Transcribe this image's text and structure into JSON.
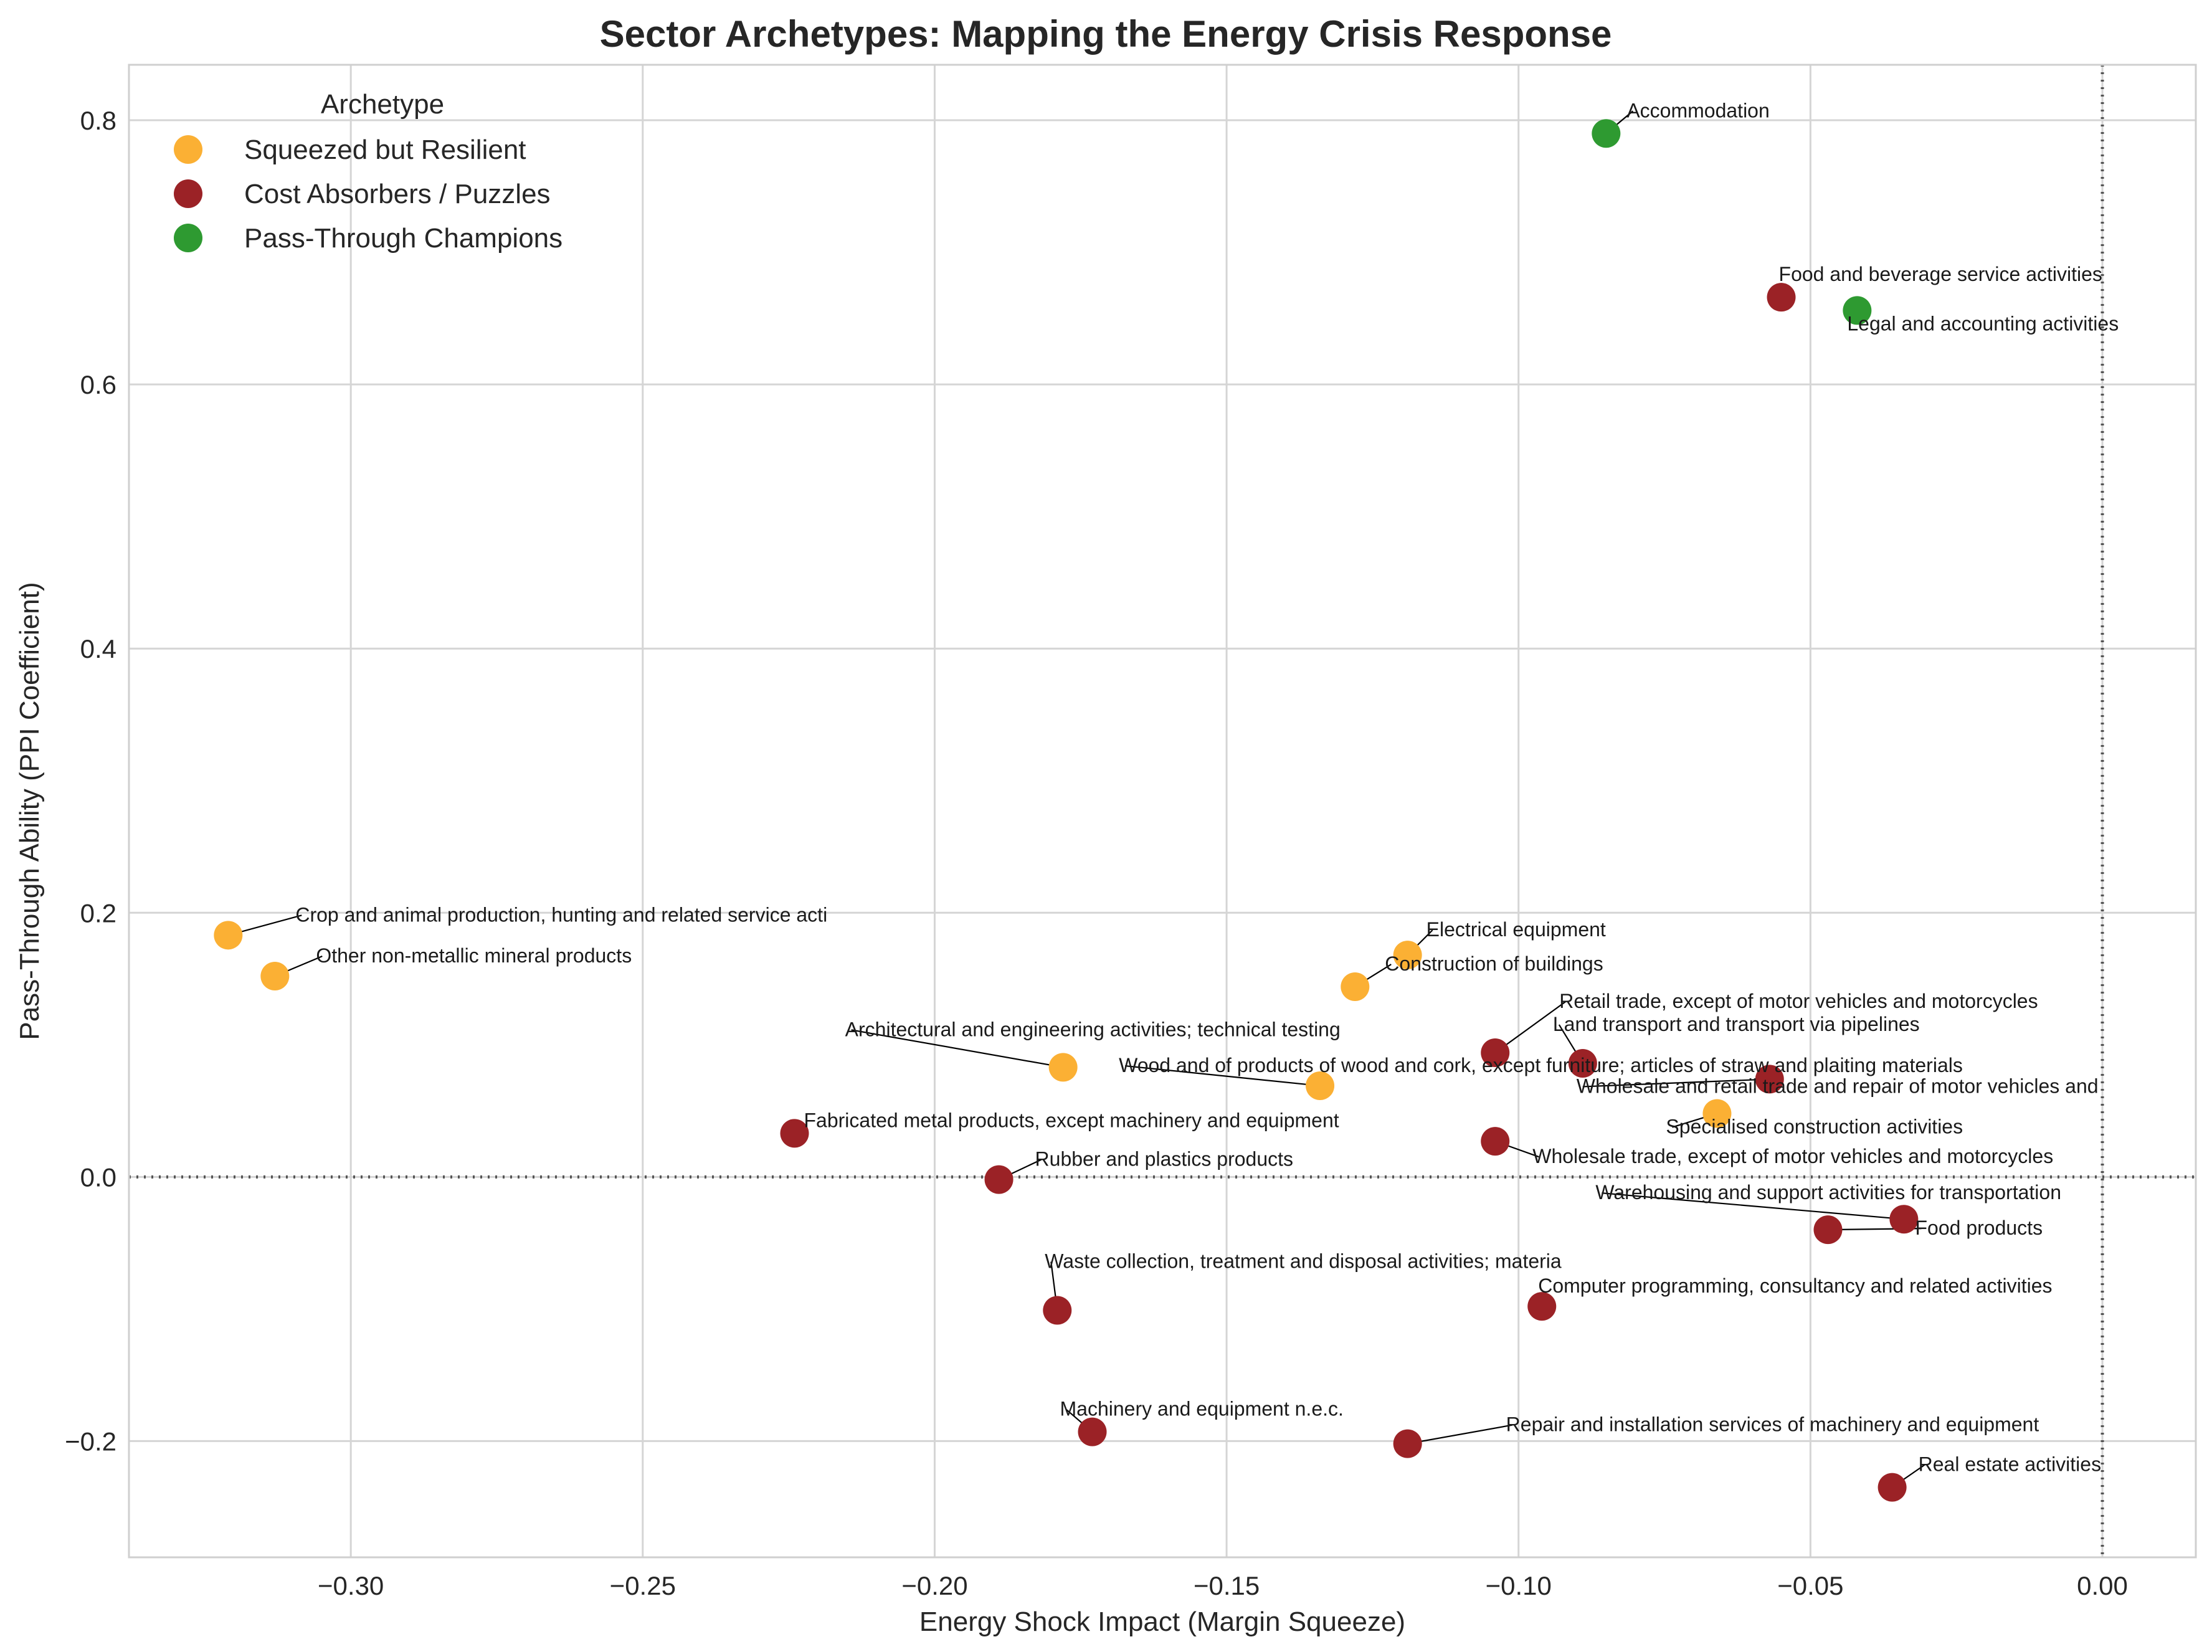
{
  "chart_data": {
    "type": "scatter",
    "title": "Sector Archetypes: Mapping the Energy Crisis Response",
    "xlabel": "Energy Shock Impact (Margin Squeeze)",
    "ylabel": "Pass-Through Ability (PPI Coefficient)",
    "xlim": [
      -0.338,
      0.016
    ],
    "ylim": [
      -0.288,
      0.842
    ],
    "xticks": [
      -0.3,
      -0.25,
      -0.2,
      -0.15,
      -0.1,
      -0.05,
      0.0
    ],
    "xtick_labels": [
      "−0.30",
      "−0.25",
      "−0.20",
      "−0.15",
      "−0.10",
      "−0.05",
      "0.00"
    ],
    "yticks": [
      -0.2,
      0.0,
      0.2,
      0.4,
      0.6,
      0.8
    ],
    "ytick_labels": [
      "−0.2",
      "0.0",
      "0.2",
      "0.4",
      "0.6",
      "0.8"
    ],
    "grid": true,
    "reference_lines": {
      "x": 0.0,
      "y": 0.0,
      "style": "dotted"
    },
    "legend": {
      "title": "Archetype",
      "placement": "top-left",
      "entries": [
        {
          "name": "Squeezed but Resilient",
          "color": "#FBB034"
        },
        {
          "name": "Cost Absorbers / Puzzles",
          "color": "#9B2226"
        },
        {
          "name": "Pass-Through Champions",
          "color": "#2E9A31"
        }
      ]
    },
    "series": [
      {
        "name": "Squeezed but Resilient",
        "color": "#FBB034",
        "points": [
          {
            "x": -0.321,
            "y": 0.183,
            "label": "Crop and animal production, hunting and related service acti"
          },
          {
            "x": -0.313,
            "y": 0.152,
            "label": "Other non-metallic mineral products"
          },
          {
            "x": -0.178,
            "y": 0.083,
            "label": "Architectural and engineering activities; technical testing"
          },
          {
            "x": -0.134,
            "y": 0.069,
            "label": "Wood and of products of wood and cork, except furniture; articles of straw and plaiting materials"
          },
          {
            "x": -0.128,
            "y": 0.144,
            "label": "Construction of buildings"
          },
          {
            "x": -0.119,
            "y": 0.168,
            "label": "Electrical equipment"
          },
          {
            "x": -0.066,
            "y": 0.048,
            "label": "Specialised construction activities"
          }
        ]
      },
      {
        "name": "Cost Absorbers / Puzzles",
        "color": "#9B2226",
        "points": [
          {
            "x": -0.224,
            "y": 0.033,
            "label": "Fabricated metal products, except machinery and equipment"
          },
          {
            "x": -0.189,
            "y": -0.002,
            "label": "Rubber and plastics products"
          },
          {
            "x": -0.179,
            "y": -0.101,
            "label": "Waste collection, treatment and disposal activities; materia"
          },
          {
            "x": -0.173,
            "y": -0.193,
            "label": "Machinery and equipment n.e.c."
          },
          {
            "x": -0.119,
            "y": -0.202,
            "label": "Repair and installation services of machinery and equipment"
          },
          {
            "x": -0.104,
            "y": 0.094,
            "label": "Retail trade, except of motor vehicles and motorcycles"
          },
          {
            "x": -0.104,
            "y": 0.027,
            "label": "Wholesale trade, except of motor vehicles and motorcycles"
          },
          {
            "x": -0.096,
            "y": -0.098,
            "label": "Computer programming, consultancy and related activities"
          },
          {
            "x": -0.089,
            "y": 0.086,
            "label": "Land transport and transport via pipelines"
          },
          {
            "x": -0.057,
            "y": 0.074,
            "label": "Wholesale and retail trade and repair of motor vehicles and"
          },
          {
            "x": -0.055,
            "y": 0.666,
            "label": "Food and beverage service activities"
          },
          {
            "x": -0.047,
            "y": -0.04,
            "label": "Food products"
          },
          {
            "x": -0.036,
            "y": -0.235,
            "label": "Real estate activities"
          },
          {
            "x": -0.034,
            "y": -0.032,
            "label": "Warehousing and support activities for transportation"
          }
        ]
      },
      {
        "name": "Pass-Through Champions",
        "color": "#2E9A31",
        "points": [
          {
            "x": -0.085,
            "y": 0.79,
            "label": "Accommodation"
          },
          {
            "x": -0.042,
            "y": 0.656,
            "label": "Legal and accounting activities"
          }
        ]
      }
    ]
  }
}
